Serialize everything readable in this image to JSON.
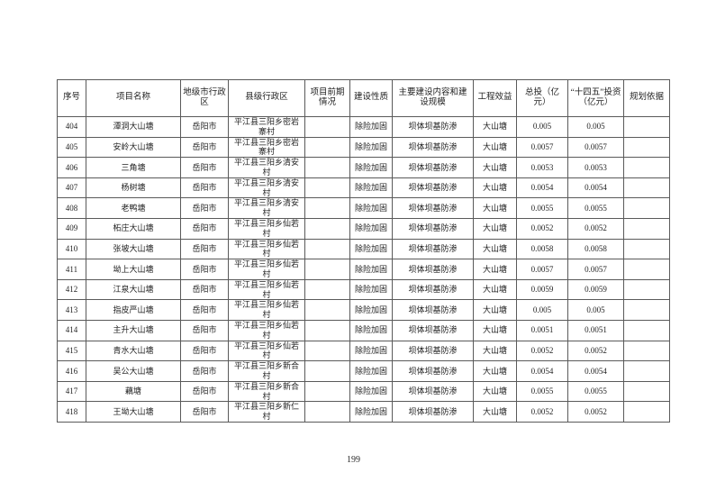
{
  "page": {
    "number": "199"
  },
  "table": {
    "headers": [
      "序号",
      "项目名称",
      "地级市行政区",
      "县级行政区",
      "项目前期情况",
      "建设性质",
      "主要建设内容和建设规模",
      "工程效益",
      "总投（亿元）",
      "“十四五”投资（亿元）",
      "规划依据"
    ],
    "rows": [
      [
        "404",
        "潭洞大山塘",
        "岳阳市",
        "平江县三阳乡密岩寨村",
        "",
        "除险加固",
        "坝体坝基防渗",
        "大山塘",
        "0.005",
        "0.005",
        ""
      ],
      [
        "405",
        "安岭大山塘",
        "岳阳市",
        "平江县三阳乡密岩寨村",
        "",
        "除险加固",
        "坝体坝基防渗",
        "大山塘",
        "0.0057",
        "0.0057",
        ""
      ],
      [
        "406",
        "三角塘",
        "岳阳市",
        "平江县三阳乡清安村",
        "",
        "除险加固",
        "坝体坝基防渗",
        "大山塘",
        "0.0053",
        "0.0053",
        ""
      ],
      [
        "407",
        "杨树塘",
        "岳阳市",
        "平江县三阳乡清安村",
        "",
        "除险加固",
        "坝体坝基防渗",
        "大山塘",
        "0.0054",
        "0.0054",
        ""
      ],
      [
        "408",
        "老鸭塘",
        "岳阳市",
        "平江县三阳乡清安村",
        "",
        "除险加固",
        "坝体坝基防渗",
        "大山塘",
        "0.0055",
        "0.0055",
        ""
      ],
      [
        "409",
        "柘庄大山塘",
        "岳阳市",
        "平江县三阳乡仙若村",
        "",
        "除险加固",
        "坝体坝基防渗",
        "大山塘",
        "0.0052",
        "0.0052",
        ""
      ],
      [
        "410",
        "张坡大山塘",
        "岳阳市",
        "平江县三阳乡仙若村",
        "",
        "除险加固",
        "坝体坝基防渗",
        "大山塘",
        "0.0058",
        "0.0058",
        ""
      ],
      [
        "411",
        "坳上大山塘",
        "岳阳市",
        "平江县三阳乡仙若村",
        "",
        "除险加固",
        "坝体坝基防渗",
        "大山塘",
        "0.0057",
        "0.0057",
        ""
      ],
      [
        "412",
        "江泉大山塘",
        "岳阳市",
        "平江县三阳乡仙若村",
        "",
        "除险加固",
        "坝体坝基防渗",
        "大山塘",
        "0.0059",
        "0.0059",
        ""
      ],
      [
        "413",
        "指皮严山塘",
        "岳阳市",
        "平江县三阳乡仙若村",
        "",
        "除险加固",
        "坝体坝基防渗",
        "大山塘",
        "0.005",
        "0.005",
        ""
      ],
      [
        "414",
        "主升大山塘",
        "岳阳市",
        "平江县三阳乡仙若村",
        "",
        "除险加固",
        "坝体坝基防渗",
        "大山塘",
        "0.0051",
        "0.0051",
        ""
      ],
      [
        "415",
        "青水大山塘",
        "岳阳市",
        "平江县三阳乡仙若村",
        "",
        "除险加固",
        "坝体坝基防渗",
        "大山塘",
        "0.0052",
        "0.0052",
        ""
      ],
      [
        "416",
        "吴公大山塘",
        "岳阳市",
        "平江县三阳乡新合村",
        "",
        "除险加固",
        "坝体坝基防渗",
        "大山塘",
        "0.0054",
        "0.0054",
        ""
      ],
      [
        "417",
        "藕塘",
        "岳阳市",
        "平江县三阳乡新合村",
        "",
        "除险加固",
        "坝体坝基防渗",
        "大山塘",
        "0.0055",
        "0.0055",
        ""
      ],
      [
        "418",
        "王坳大山塘",
        "岳阳市",
        "平江县三阳乡新仁村",
        "",
        "除险加固",
        "坝体坝基防渗",
        "大山塘",
        "0.0052",
        "0.0052",
        ""
      ]
    ]
  }
}
